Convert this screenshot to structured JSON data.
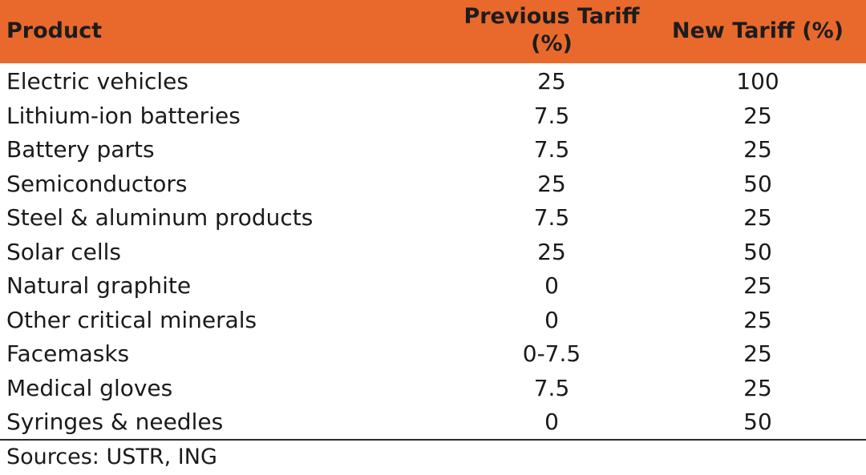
{
  "chart_data": {
    "type": "table",
    "columns": [
      "Product",
      "Previous Tariff (%)",
      "New Tariff (%)"
    ],
    "rows": [
      [
        "Electric vehicles",
        "25",
        "100"
      ],
      [
        "Lithium-ion batteries",
        "7.5",
        "25"
      ],
      [
        "Battery parts",
        "7.5",
        "25"
      ],
      [
        "Semiconductors",
        "25",
        "50"
      ],
      [
        "Steel & aluminum products",
        "7.5",
        "25"
      ],
      [
        "Solar cells",
        "25",
        "50"
      ],
      [
        "Natural graphite",
        "0",
        "25"
      ],
      [
        "Other critical minerals",
        "0",
        "25"
      ],
      [
        "Facemasks",
        "0-7.5",
        "25"
      ],
      [
        "Medical gloves",
        "7.5",
        "25"
      ],
      [
        "Syringes & needles",
        "0",
        "50"
      ]
    ],
    "header_color": "#e9692c"
  },
  "source": "Sources: USTR, ING"
}
